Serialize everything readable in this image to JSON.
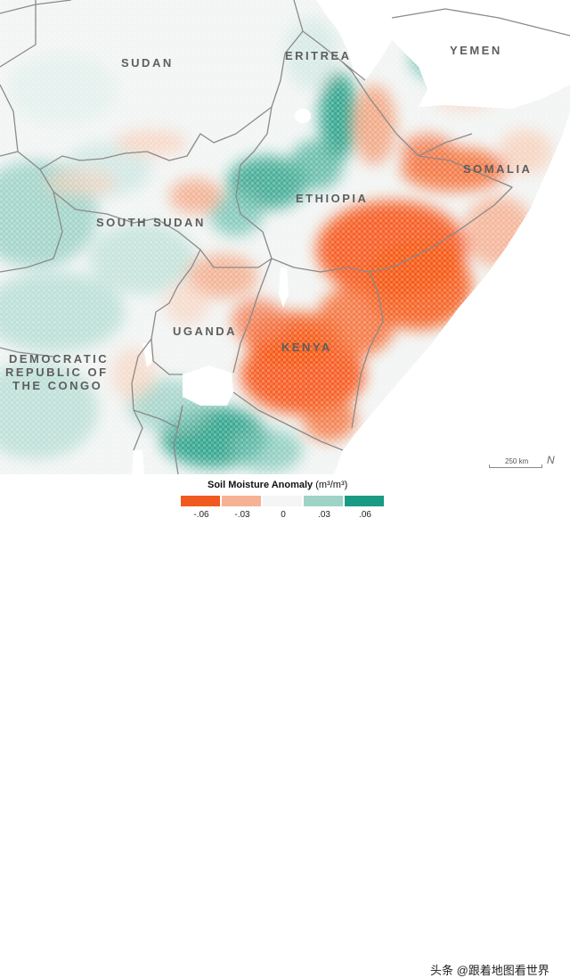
{
  "map": {
    "labels": {
      "sudan": "SUDAN",
      "eritrea": "ERITREA",
      "yemen": "YEMEN",
      "somalia": "SOMALIA",
      "ethiopia": "ETHIOPIA",
      "south_sudan": "SOUTH SUDAN",
      "uganda": "UGANDA",
      "kenya": "KENYA",
      "drc_line1": "DEMOCRATIC",
      "drc_line2": "REPUBLIC OF",
      "drc_line3": "THE CONGO"
    },
    "scale_bar": "250 km",
    "north_arrow": "N",
    "colors": {
      "land_base": "#f2f5f4",
      "water": "#ffffff",
      "dry_strong": "#f55a1a",
      "dry_mid": "#f39a72",
      "dry_light": "#f8cdb6",
      "wet_light": "#bfe1da",
      "wet_mid": "#6fc2b1",
      "wet_strong": "#1a9a80",
      "border": "#888888"
    }
  },
  "legend": {
    "title": "Soil Moisture Anomaly",
    "unit": "(m³/m³)",
    "ticks": [
      "-.06",
      "-.03",
      "0",
      ".03",
      ".06"
    ],
    "colors": [
      "#f05a1e",
      "#f5b394",
      "#f5f5f5",
      "#9fd3c7",
      "#1a9a85"
    ]
  },
  "watermark": "头条 @跟着地图看世界"
}
